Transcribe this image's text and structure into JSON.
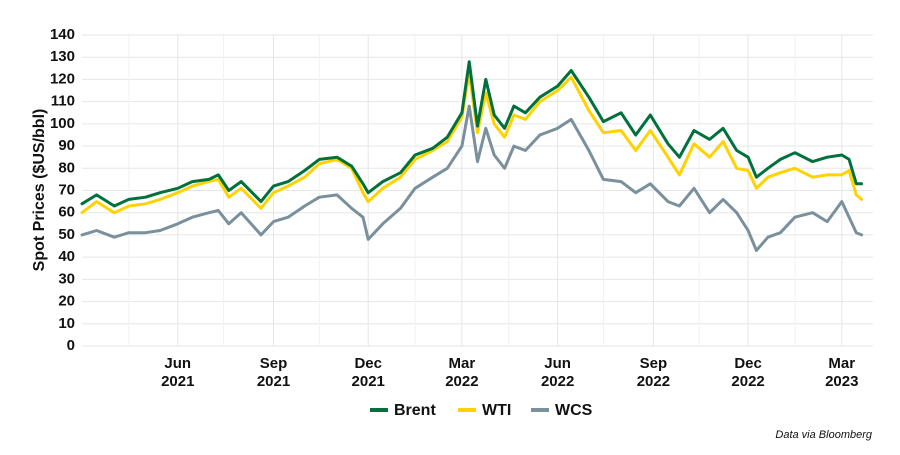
{
  "chart_data": {
    "type": "line",
    "title": "",
    "ylabel": "Spot Prices ($US/bbl)",
    "xlabel": "",
    "ylim": [
      0,
      140
    ],
    "yticks": [
      0,
      10,
      20,
      30,
      40,
      50,
      60,
      70,
      80,
      90,
      100,
      110,
      120,
      130,
      140
    ],
    "xlim": [
      "2021-03-01",
      "2023-03-31"
    ],
    "xticks": [
      {
        "date": "2021-06-01",
        "line1": "Jun",
        "line2": "2021"
      },
      {
        "date": "2021-09-01",
        "line1": "Sep",
        "line2": "2021"
      },
      {
        "date": "2021-12-01",
        "line1": "Dec",
        "line2": "2021"
      },
      {
        "date": "2022-03-01",
        "line1": "Mar",
        "line2": "2022"
      },
      {
        "date": "2022-06-01",
        "line1": "Jun",
        "line2": "2022"
      },
      {
        "date": "2022-09-01",
        "line1": "Sep",
        "line2": "2022"
      },
      {
        "date": "2022-12-01",
        "line1": "Dec",
        "line2": "2022"
      },
      {
        "date": "2023-03-01",
        "line1": "Mar",
        "line2": "2023"
      }
    ],
    "grid": true,
    "legend_position": "bottom-center",
    "series": [
      {
        "name": "Brent",
        "color": "#00703c",
        "points": [
          [
            "2021-03-01",
            64
          ],
          [
            "2021-03-15",
            68
          ],
          [
            "2021-04-01",
            63
          ],
          [
            "2021-04-15",
            66
          ],
          [
            "2021-05-01",
            67
          ],
          [
            "2021-05-15",
            69
          ],
          [
            "2021-06-01",
            71
          ],
          [
            "2021-06-15",
            74
          ],
          [
            "2021-07-01",
            75
          ],
          [
            "2021-07-10",
            77
          ],
          [
            "2021-07-20",
            70
          ],
          [
            "2021-08-01",
            74
          ],
          [
            "2021-08-20",
            65
          ],
          [
            "2021-09-01",
            72
          ],
          [
            "2021-09-15",
            74
          ],
          [
            "2021-10-01",
            79
          ],
          [
            "2021-10-15",
            84
          ],
          [
            "2021-11-01",
            85
          ],
          [
            "2021-11-15",
            81
          ],
          [
            "2021-11-26",
            73
          ],
          [
            "2021-12-01",
            69
          ],
          [
            "2021-12-15",
            74
          ],
          [
            "2022-01-01",
            78
          ],
          [
            "2022-01-15",
            86
          ],
          [
            "2022-02-01",
            89
          ],
          [
            "2022-02-15",
            94
          ],
          [
            "2022-03-01",
            105
          ],
          [
            "2022-03-08",
            128
          ],
          [
            "2022-03-16",
            99
          ],
          [
            "2022-03-24",
            120
          ],
          [
            "2022-04-01",
            104
          ],
          [
            "2022-04-11",
            98
          ],
          [
            "2022-04-20",
            108
          ],
          [
            "2022-05-01",
            105
          ],
          [
            "2022-05-15",
            112
          ],
          [
            "2022-06-01",
            117
          ],
          [
            "2022-06-14",
            124
          ],
          [
            "2022-07-01",
            112
          ],
          [
            "2022-07-15",
            101
          ],
          [
            "2022-08-01",
            105
          ],
          [
            "2022-08-15",
            95
          ],
          [
            "2022-08-29",
            104
          ],
          [
            "2022-09-15",
            91
          ],
          [
            "2022-09-26",
            85
          ],
          [
            "2022-10-10",
            97
          ],
          [
            "2022-10-25",
            93
          ],
          [
            "2022-11-07",
            98
          ],
          [
            "2022-11-20",
            88
          ],
          [
            "2022-12-01",
            85
          ],
          [
            "2022-12-09",
            76
          ],
          [
            "2022-12-20",
            80
          ],
          [
            "2023-01-01",
            84
          ],
          [
            "2023-01-15",
            87
          ],
          [
            "2023-02-01",
            83
          ],
          [
            "2023-02-15",
            85
          ],
          [
            "2023-03-01",
            86
          ],
          [
            "2023-03-08",
            84
          ],
          [
            "2023-03-15",
            73
          ],
          [
            "2023-03-20",
            73
          ]
        ]
      },
      {
        "name": "WTI",
        "color": "#ffd200",
        "points": [
          [
            "2021-03-01",
            60
          ],
          [
            "2021-03-15",
            65
          ],
          [
            "2021-04-01",
            60
          ],
          [
            "2021-04-15",
            63
          ],
          [
            "2021-05-01",
            64
          ],
          [
            "2021-05-15",
            66
          ],
          [
            "2021-06-01",
            69
          ],
          [
            "2021-06-15",
            72
          ],
          [
            "2021-07-01",
            74
          ],
          [
            "2021-07-10",
            75
          ],
          [
            "2021-07-20",
            67
          ],
          [
            "2021-08-01",
            71
          ],
          [
            "2021-08-20",
            62
          ],
          [
            "2021-09-01",
            69
          ],
          [
            "2021-09-15",
            72
          ],
          [
            "2021-10-01",
            76
          ],
          [
            "2021-10-15",
            82
          ],
          [
            "2021-11-01",
            84
          ],
          [
            "2021-11-15",
            80
          ],
          [
            "2021-11-26",
            69
          ],
          [
            "2021-12-01",
            65
          ],
          [
            "2021-12-15",
            71
          ],
          [
            "2022-01-01",
            76
          ],
          [
            "2022-01-15",
            84
          ],
          [
            "2022-02-01",
            88
          ],
          [
            "2022-02-15",
            92
          ],
          [
            "2022-03-01",
            103
          ],
          [
            "2022-03-08",
            123
          ],
          [
            "2022-03-16",
            96
          ],
          [
            "2022-03-24",
            114
          ],
          [
            "2022-04-01",
            100
          ],
          [
            "2022-04-11",
            94
          ],
          [
            "2022-04-20",
            104
          ],
          [
            "2022-05-01",
            102
          ],
          [
            "2022-05-15",
            110
          ],
          [
            "2022-06-01",
            115
          ],
          [
            "2022-06-14",
            121
          ],
          [
            "2022-07-01",
            106
          ],
          [
            "2022-07-15",
            96
          ],
          [
            "2022-08-01",
            97
          ],
          [
            "2022-08-15",
            88
          ],
          [
            "2022-08-29",
            97
          ],
          [
            "2022-09-15",
            85
          ],
          [
            "2022-09-26",
            77
          ],
          [
            "2022-10-10",
            91
          ],
          [
            "2022-10-25",
            85
          ],
          [
            "2022-11-07",
            92
          ],
          [
            "2022-11-20",
            80
          ],
          [
            "2022-12-01",
            79
          ],
          [
            "2022-12-09",
            71
          ],
          [
            "2022-12-20",
            76
          ],
          [
            "2023-01-01",
            78
          ],
          [
            "2023-01-15",
            80
          ],
          [
            "2023-02-01",
            76
          ],
          [
            "2023-02-15",
            77
          ],
          [
            "2023-03-01",
            77
          ],
          [
            "2023-03-08",
            79
          ],
          [
            "2023-03-15",
            68
          ],
          [
            "2023-03-20",
            66
          ]
        ]
      },
      {
        "name": "WCS",
        "color": "#7a909c",
        "points": [
          [
            "2021-03-01",
            50
          ],
          [
            "2021-03-15",
            52
          ],
          [
            "2021-04-01",
            49
          ],
          [
            "2021-04-15",
            51
          ],
          [
            "2021-05-01",
            51
          ],
          [
            "2021-05-15",
            52
          ],
          [
            "2021-06-01",
            55
          ],
          [
            "2021-06-15",
            58
          ],
          [
            "2021-07-01",
            60
          ],
          [
            "2021-07-10",
            61
          ],
          [
            "2021-07-20",
            55
          ],
          [
            "2021-08-01",
            60
          ],
          [
            "2021-08-20",
            50
          ],
          [
            "2021-09-01",
            56
          ],
          [
            "2021-09-15",
            58
          ],
          [
            "2021-10-01",
            63
          ],
          [
            "2021-10-15",
            67
          ],
          [
            "2021-11-01",
            68
          ],
          [
            "2021-11-15",
            62
          ],
          [
            "2021-11-26",
            58
          ],
          [
            "2021-12-01",
            48
          ],
          [
            "2021-12-15",
            55
          ],
          [
            "2022-01-01",
            62
          ],
          [
            "2022-01-15",
            71
          ],
          [
            "2022-02-01",
            76
          ],
          [
            "2022-02-15",
            80
          ],
          [
            "2022-03-01",
            90
          ],
          [
            "2022-03-08",
            108
          ],
          [
            "2022-03-16",
            83
          ],
          [
            "2022-03-24",
            98
          ],
          [
            "2022-04-01",
            86
          ],
          [
            "2022-04-11",
            80
          ],
          [
            "2022-04-20",
            90
          ],
          [
            "2022-05-01",
            88
          ],
          [
            "2022-05-15",
            95
          ],
          [
            "2022-06-01",
            98
          ],
          [
            "2022-06-14",
            102
          ],
          [
            "2022-07-01",
            88
          ],
          [
            "2022-07-15",
            75
          ],
          [
            "2022-08-01",
            74
          ],
          [
            "2022-08-15",
            69
          ],
          [
            "2022-08-29",
            73
          ],
          [
            "2022-09-15",
            65
          ],
          [
            "2022-09-26",
            63
          ],
          [
            "2022-10-10",
            71
          ],
          [
            "2022-10-25",
            60
          ],
          [
            "2022-11-07",
            66
          ],
          [
            "2022-11-20",
            60
          ],
          [
            "2022-12-01",
            52
          ],
          [
            "2022-12-09",
            43
          ],
          [
            "2022-12-20",
            49
          ],
          [
            "2023-01-01",
            51
          ],
          [
            "2023-01-15",
            58
          ],
          [
            "2023-02-01",
            60
          ],
          [
            "2023-02-15",
            56
          ],
          [
            "2023-03-01",
            65
          ],
          [
            "2023-03-08",
            58
          ],
          [
            "2023-03-15",
            51
          ],
          [
            "2023-03-20",
            50
          ]
        ]
      }
    ],
    "source_note": "Data via Bloomberg"
  }
}
